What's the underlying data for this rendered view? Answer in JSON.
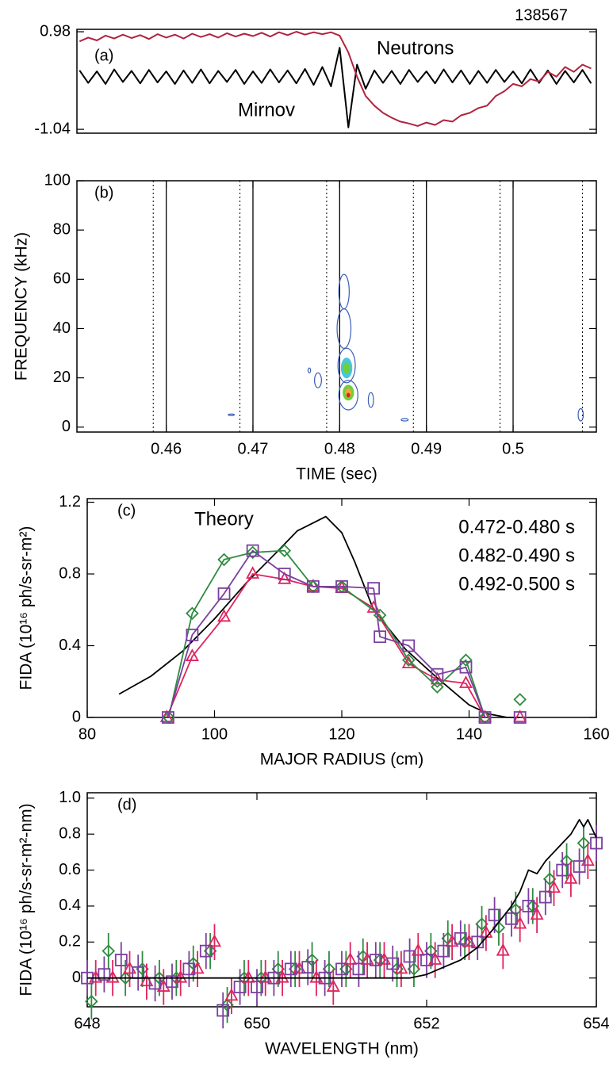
{
  "chart_data": [
    {
      "type": "line",
      "label": "(a)",
      "shot": "138567",
      "xlim": [
        0.4497,
        0.5096
      ],
      "ylim": [
        -1.12,
        1.03
      ],
      "yticks": [
        0.98,
        -1.04
      ],
      "x": [
        0.45,
        0.451,
        0.452,
        0.453,
        0.454,
        0.455,
        0.456,
        0.457,
        0.458,
        0.459,
        0.46,
        0.461,
        0.462,
        0.463,
        0.464,
        0.465,
        0.466,
        0.467,
        0.468,
        0.469,
        0.47,
        0.471,
        0.472,
        0.473,
        0.474,
        0.475,
        0.476,
        0.477,
        0.478,
        0.479,
        0.48,
        0.481,
        0.482,
        0.483,
        0.484,
        0.485,
        0.486,
        0.487,
        0.488,
        0.489,
        0.49,
        0.491,
        0.492,
        0.493,
        0.494,
        0.495,
        0.496,
        0.497,
        0.498,
        0.499,
        0.5,
        0.501,
        0.502,
        0.503,
        0.504,
        0.505,
        0.506,
        0.507,
        0.508,
        0.509
      ],
      "series": [
        {
          "name": "Mirnov",
          "color": "#000000",
          "values": [
            0.18,
            -0.08,
            0.16,
            -0.1,
            0.2,
            -0.06,
            0.17,
            -0.09,
            0.19,
            -0.07,
            0.16,
            -0.1,
            0.18,
            -0.08,
            0.2,
            -0.09,
            0.17,
            -0.06,
            0.19,
            -0.1,
            0.16,
            -0.08,
            0.2,
            -0.07,
            0.18,
            -0.09,
            0.21,
            -0.12,
            0.25,
            -0.15,
            0.65,
            -1.0,
            0.3,
            -0.2,
            0.18,
            -0.08,
            0.17,
            -0.1,
            0.19,
            -0.06,
            0.16,
            -0.09,
            0.2,
            -0.07,
            0.18,
            -0.1,
            0.17,
            -0.08,
            0.19,
            -0.06,
            0.16,
            -0.09,
            0.2,
            -0.08,
            0.18,
            -0.1,
            0.17,
            -0.07,
            0.19,
            -0.09
          ]
        },
        {
          "name": "Neutrons",
          "color": "#b0233f",
          "values": [
            0.78,
            0.86,
            0.8,
            0.9,
            0.84,
            0.92,
            0.85,
            0.91,
            0.83,
            0.93,
            0.86,
            0.92,
            0.84,
            0.94,
            0.87,
            0.93,
            0.86,
            0.95,
            0.88,
            0.94,
            0.89,
            0.96,
            0.88,
            0.97,
            0.91,
            0.98,
            0.92,
            0.97,
            0.93,
            0.97,
            0.9,
            0.55,
            0.05,
            -0.35,
            -0.55,
            -0.7,
            -0.8,
            -0.88,
            -0.92,
            -0.97,
            -0.9,
            -0.95,
            -0.85,
            -0.88,
            -0.75,
            -0.7,
            -0.6,
            -0.55,
            -0.35,
            -0.25,
            -0.1,
            -0.15,
            0.0,
            -0.05,
            0.15,
            0.05,
            0.25,
            0.15,
            0.3,
            0.22
          ]
        }
      ]
    },
    {
      "type": "spectrogram",
      "label": "(b)",
      "x_label": "TIME (sec)",
      "y_label": "FREQUENCY (kHz)",
      "xlim": [
        0.4497,
        0.5096
      ],
      "ylim": [
        -2,
        100
      ],
      "xticks": [
        0.46,
        0.47,
        0.48,
        0.49,
        0.5
      ],
      "yticks": [
        0,
        20,
        40,
        60,
        80,
        100
      ],
      "solid_lines": [
        0.46,
        0.47,
        0.48,
        0.49,
        0.5
      ],
      "dotted_lines": [
        0.4585,
        0.4685,
        0.4785,
        0.4885,
        0.4985,
        0.508
      ],
      "contours": {
        "x": [
          0.4805,
          0.4805,
          0.4808,
          0.481,
          0.4808,
          0.4808,
          0.481,
          0.481,
          0.481,
          0.4775,
          0.4765,
          0.4836,
          0.4875,
          0.4675,
          0.5078
        ],
        "y": [
          55,
          40,
          25,
          13,
          24,
          24,
          14,
          14,
          13,
          19,
          23,
          11,
          3,
          5,
          5
        ],
        "width": [
          0.0012,
          0.0016,
          0.002,
          0.0022,
          0.0012,
          0.0007,
          0.0012,
          0.0006,
          0.0003,
          0.0008,
          0.0003,
          0.0006,
          0.0008,
          0.0007,
          0.0006
        ],
        "height": [
          14,
          16,
          14,
          12,
          8,
          4,
          6,
          3,
          1.5,
          6,
          2,
          6,
          1,
          0.6,
          5
        ],
        "color": [
          "#3a5fb8",
          "#3a5fb8",
          "#3a5fb8",
          "#3a5fb8",
          "#49c6d8",
          "#6fcf3a",
          "#6fcf3a",
          "#f2a73b",
          "#e02020",
          "#3a5fb8",
          "#3a5fb8",
          "#3a5fb8",
          "#3a5fb8",
          "#3a5fb8",
          "#3a5fb8"
        ],
        "filled": [
          false,
          false,
          false,
          false,
          true,
          true,
          true,
          true,
          true,
          false,
          false,
          false,
          false,
          false,
          false
        ]
      }
    },
    {
      "type": "line",
      "label": "(c)",
      "x_label": "MAJOR RADIUS (cm)",
      "y_label": "FIDA (10¹⁶ ph/s-sr-m²)",
      "xlim": [
        80,
        160
      ],
      "ylim": [
        0,
        1.22
      ],
      "xticks": [
        80,
        100,
        120,
        140,
        160
      ],
      "yticks": [
        0,
        0.4,
        0.8,
        1.2
      ],
      "series": [
        {
          "name": "Theory",
          "color": "#000000",
          "marker": "none",
          "x": [
            85,
            90,
            95,
            100,
            105,
            110,
            113,
            117.5,
            120,
            122,
            125,
            130,
            135,
            140,
            143,
            146,
            148
          ],
          "values": [
            0.13,
            0.23,
            0.37,
            0.55,
            0.75,
            0.93,
            1.04,
            1.12,
            1.03,
            0.87,
            0.6,
            0.38,
            0.22,
            0.07,
            0.02,
            0.0,
            0.0
          ]
        },
        {
          "name": "0.472-0.480 s",
          "color": "#e0245e",
          "marker": "triangle",
          "x": [
            92.5,
            96.5,
            101.5,
            106,
            111,
            115.5,
            120,
            125,
            130.5,
            135,
            139.5,
            142.5,
            null,
            148
          ],
          "values": [
            0,
            0.34,
            0.56,
            0.8,
            0.77,
            0.73,
            0.72,
            0.61,
            0.3,
            0.21,
            0.19,
            0,
            null,
            0
          ]
        },
        {
          "name": "0.482-0.490 s",
          "color": "#2e8b3e",
          "marker": "diamond",
          "x": [
            92.8,
            96.5,
            101.5,
            106,
            111,
            115.5,
            120,
            126,
            130.5,
            135,
            139.5,
            142.5,
            null,
            148
          ],
          "values": [
            0,
            0.58,
            0.88,
            0.92,
            0.93,
            0.73,
            0.73,
            0.57,
            0.32,
            0.17,
            0.32,
            0,
            null,
            0.1
          ]
        },
        {
          "name": "0.492-0.500 s",
          "color": "#7b3fa0",
          "marker": "square",
          "x": [
            92.7,
            96.5,
            101.5,
            106,
            111,
            115.5,
            120,
            125,
            126,
            130.5,
            135,
            139.5,
            142.5,
            null,
            148
          ],
          "values": [
            0,
            0.46,
            0.69,
            0.93,
            0.8,
            0.73,
            0.73,
            0.72,
            0.45,
            0.4,
            0.24,
            0.28,
            0,
            null,
            0
          ]
        }
      ]
    },
    {
      "type": "line",
      "label": "(d)",
      "x_label": "WAVELENGTH (nm)",
      "y_label": "FIDA (10¹⁶ ph/s-sr-m²-nm)",
      "xlim": [
        648,
        654
      ],
      "ylim": [
        -0.16,
        1.03
      ],
      "xticks": [
        648,
        650,
        652,
        654
      ],
      "yticks": [
        0,
        0.2,
        0.4,
        0.6,
        0.8,
        {
          "value": 1,
          "label": "1.0"
        }
      ],
      "series": [
        {
          "color": "#2e8b3e",
          "marker": "diamond",
          "x": [
            648.05,
            648.25,
            648.45,
            648.65,
            648.85,
            649.05,
            649.25,
            649.45,
            649.65,
            649.85,
            650.05,
            650.25,
            650.45,
            650.65,
            650.85,
            651.05,
            651.25,
            651.45,
            651.65,
            651.85,
            652.05,
            652.25,
            652.45,
            652.65,
            652.85,
            653.05,
            653.25,
            653.45,
            653.65,
            653.85
          ],
          "values": [
            -0.13,
            0.15,
            0.0,
            0.05,
            0.0,
            0.0,
            0.08,
            0.15,
            -0.15,
            0.0,
            0.0,
            0.05,
            0.05,
            0.1,
            0.05,
            0.05,
            0.12,
            0.1,
            0.05,
            0.05,
            0.15,
            0.22,
            0.2,
            0.3,
            0.28,
            0.38,
            0.4,
            0.55,
            0.65,
            0.75
          ],
          "errors": [
            0.1,
            0.1,
            0.1,
            0.1,
            0.1,
            0.1,
            0.1,
            0.1,
            0.1,
            0.1,
            0.1,
            0.1,
            0.1,
            0.1,
            0.1,
            0.1,
            0.1,
            0.1,
            0.1,
            0.1,
            0.1,
            0.1,
            0.1,
            0.1,
            0.1,
            0.1,
            0.1,
            0.1,
            0.1,
            0.1
          ]
        },
        {
          "color": "#e0245e",
          "marker": "triangle",
          "x": [
            648.1,
            648.3,
            648.5,
            648.7,
            648.9,
            649.1,
            649.3,
            649.5,
            649.7,
            649.9,
            650.1,
            650.3,
            650.5,
            650.7,
            650.9,
            651.1,
            651.3,
            651.5,
            651.7,
            651.9,
            652.1,
            652.3,
            652.5,
            652.7,
            652.9,
            653.1,
            653.3,
            653.5,
            653.7,
            653.9
          ],
          "values": [
            0.0,
            0.0,
            0.05,
            -0.02,
            -0.05,
            0.0,
            0.05,
            0.2,
            -0.1,
            0.0,
            0.0,
            0.0,
            0.05,
            0.0,
            -0.05,
            0.1,
            0.1,
            0.1,
            0.05,
            0.15,
            0.1,
            0.2,
            0.2,
            0.25,
            0.15,
            0.3,
            0.35,
            0.5,
            0.55,
            0.65
          ],
          "errors": [
            0.1,
            0.1,
            0.1,
            0.1,
            0.1,
            0.1,
            0.1,
            0.1,
            0.1,
            0.1,
            0.1,
            0.1,
            0.1,
            0.1,
            0.1,
            0.1,
            0.1,
            0.1,
            0.1,
            0.1,
            0.1,
            0.1,
            0.1,
            0.1,
            0.1,
            0.1,
            0.1,
            0.1,
            0.1,
            0.1
          ]
        },
        {
          "color": "#7b3fa0",
          "marker": "square",
          "x": [
            648.0,
            648.2,
            648.4,
            648.6,
            648.8,
            649.0,
            649.2,
            649.4,
            649.6,
            649.8,
            650.0,
            650.2,
            650.4,
            650.6,
            650.8,
            651.0,
            651.2,
            651.4,
            651.6,
            651.8,
            652.0,
            652.2,
            652.4,
            652.6,
            652.8,
            653.0,
            653.2,
            653.4,
            653.6,
            653.8,
            654.0
          ],
          "values": [
            0.0,
            0.02,
            0.1,
            0.03,
            -0.03,
            -0.02,
            0.05,
            0.15,
            -0.18,
            -0.05,
            -0.05,
            0.0,
            0.05,
            0.06,
            0.0,
            0.05,
            0.05,
            0.1,
            0.08,
            0.12,
            0.1,
            0.15,
            0.22,
            0.2,
            0.35,
            0.33,
            0.4,
            0.45,
            0.6,
            0.62,
            0.75
          ],
          "errors": [
            0.1,
            0.1,
            0.1,
            0.1,
            0.1,
            0.1,
            0.1,
            0.1,
            0.1,
            0.1,
            0.1,
            0.1,
            0.1,
            0.1,
            0.1,
            0.1,
            0.1,
            0.1,
            0.1,
            0.1,
            0.1,
            0.1,
            0.1,
            0.1,
            0.1,
            0.1,
            0.1,
            0.1,
            0.1,
            0.1,
            0.1
          ]
        },
        {
          "color": "#000000",
          "marker": "none",
          "x": [
            648,
            651.8,
            652,
            652.2,
            652.4,
            652.6,
            652.8,
            653.0,
            653.1,
            653.2,
            653.3,
            653.4,
            653.5,
            653.6,
            653.7,
            653.8,
            653.85,
            653.9,
            654
          ],
          "values": [
            0,
            0,
            0.02,
            0.06,
            0.1,
            0.17,
            0.28,
            0.4,
            0.48,
            0.6,
            0.58,
            0.65,
            0.7,
            0.75,
            0.8,
            0.88,
            0.84,
            0.88,
            0.78
          ]
        }
      ]
    }
  ]
}
